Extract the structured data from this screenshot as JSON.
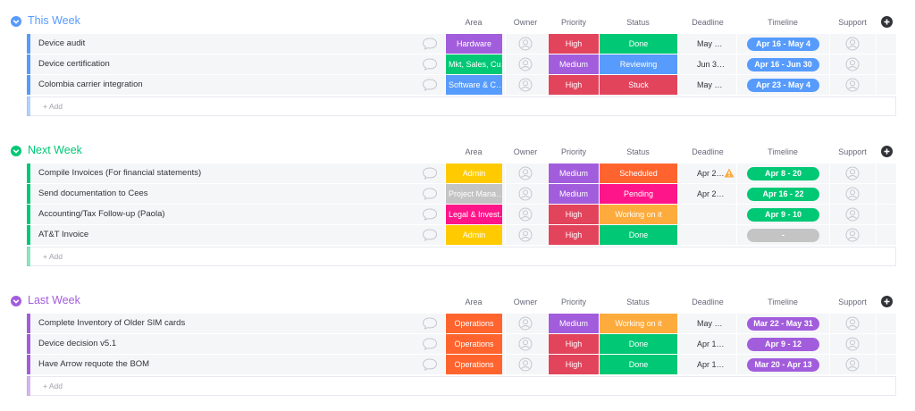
{
  "groups": [
    {
      "title": "This Week",
      "color": "#579bfc",
      "columns": [
        "Area",
        "Owner",
        "Priority",
        "Status",
        "Deadline",
        "Timeline",
        "Support"
      ],
      "rows": [
        {
          "name": "Device audit",
          "area": {
            "text": "Hardware",
            "color": "#a25ddc"
          },
          "priority": {
            "text": "High",
            "color": "#e2445c"
          },
          "status": {
            "text": "Done",
            "color": "#00c875"
          },
          "deadline": "May …",
          "timeline": {
            "text": "Apr 16 - May 4",
            "color": "#579bfc"
          }
        },
        {
          "name": "Device certification",
          "area": {
            "text": "Mkt, Sales, Cu…",
            "color": "#00c875"
          },
          "priority": {
            "text": "Medium",
            "color": "#a25ddc"
          },
          "status": {
            "text": "Reviewing",
            "color": "#579bfc"
          },
          "deadline": "Jun 3…",
          "timeline": {
            "text": "Apr 16 - Jun 30",
            "color": "#579bfc"
          }
        },
        {
          "name": "Colombia carrier integration",
          "area": {
            "text": "Software & C…",
            "color": "#579bfc"
          },
          "priority": {
            "text": "High",
            "color": "#e2445c"
          },
          "status": {
            "text": "Stuck",
            "color": "#e2445c"
          },
          "deadline": "May …",
          "timeline": {
            "text": "Apr 23 - May 4",
            "color": "#579bfc"
          }
        }
      ],
      "add": "+ Add"
    },
    {
      "title": "Next Week",
      "color": "#00c875",
      "columns": [
        "Area",
        "Owner",
        "Priority",
        "Status",
        "Deadline",
        "Timeline",
        "Support"
      ],
      "rows": [
        {
          "name": "Compile Invoices (For financial statements)",
          "area": {
            "text": "Admin",
            "color": "#ffcb00"
          },
          "priority": {
            "text": "Medium",
            "color": "#a25ddc"
          },
          "status": {
            "text": "Scheduled",
            "color": "#ff642e"
          },
          "deadline": "Apr 2…",
          "deadline_warning": true,
          "timeline": {
            "text": "Apr 8 - 20",
            "color": "#00c875"
          }
        },
        {
          "name": "Send documentation to Cees",
          "area": {
            "text": "Project Mana…",
            "color": "#c4c4c4"
          },
          "priority": {
            "text": "Medium",
            "color": "#a25ddc"
          },
          "status": {
            "text": "Pending",
            "color": "#ff158a"
          },
          "deadline": "Apr 2…",
          "timeline": {
            "text": "Apr 16 - 22",
            "color": "#00c875"
          }
        },
        {
          "name": "Accounting/Tax Follow-up (Paola)",
          "area": {
            "text": "Legal & Invest…",
            "color": "#ff158a"
          },
          "priority": {
            "text": "High",
            "color": "#e2445c"
          },
          "status": {
            "text": "Working on it",
            "color": "#fdab3d"
          },
          "timeline": {
            "text": "Apr 9 - 10",
            "color": "#00c875"
          }
        },
        {
          "name": "AT&T Invoice",
          "area": {
            "text": "Admin",
            "color": "#ffcb00"
          },
          "priority": {
            "text": "High",
            "color": "#e2445c"
          },
          "status": {
            "text": "Done",
            "color": "#00c875"
          },
          "timeline": {
            "text": "-",
            "color": "#c4c4c4"
          }
        }
      ],
      "add": "+ Add"
    },
    {
      "title": "Last Week",
      "color": "#a25ddc",
      "columns": [
        "Area",
        "Owner",
        "Priority",
        "Status",
        "Deadline",
        "Timeline",
        "Support"
      ],
      "rows": [
        {
          "name": "Complete Inventory of Older SIM cards",
          "area": {
            "text": "Operations",
            "color": "#ff642e"
          },
          "priority": {
            "text": "Medium",
            "color": "#a25ddc"
          },
          "status": {
            "text": "Working on it",
            "color": "#fdab3d"
          },
          "deadline": "May …",
          "timeline": {
            "text": "Mar 22 - May 31",
            "color": "#a25ddc"
          }
        },
        {
          "name": "Device decision v5.1",
          "area": {
            "text": "Operations",
            "color": "#ff642e"
          },
          "priority": {
            "text": "High",
            "color": "#e2445c"
          },
          "status": {
            "text": "Done",
            "color": "#00c875"
          },
          "deadline": "Apr 1…",
          "timeline": {
            "text": "Apr 9 - 12",
            "color": "#a25ddc"
          }
        },
        {
          "name": "Have Arrow requote the BOM",
          "area": {
            "text": "Operations",
            "color": "#ff642e"
          },
          "priority": {
            "text": "High",
            "color": "#e2445c"
          },
          "status": {
            "text": "Done",
            "color": "#00c875"
          },
          "deadline": "Apr 1…",
          "timeline": {
            "text": "Mar 20 - Apr 13",
            "color": "#a25ddc"
          }
        }
      ],
      "add": "+ Add"
    }
  ]
}
